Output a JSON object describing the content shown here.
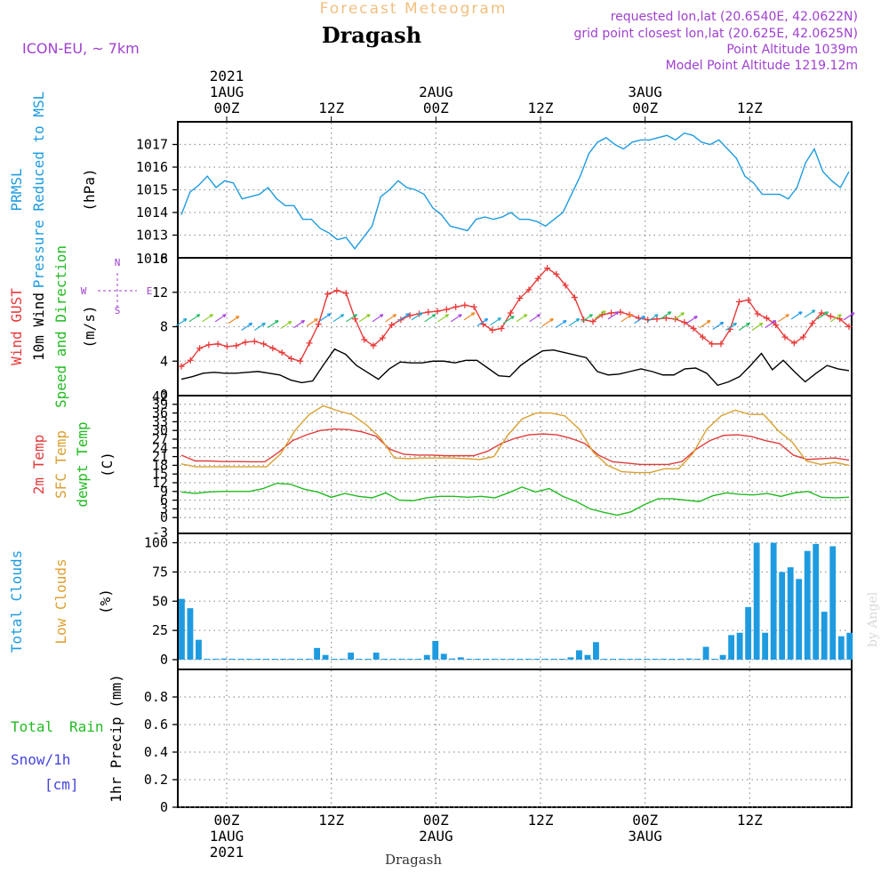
{
  "header": {
    "forecast_title": "Forecast Meteogram",
    "location": "Dragash",
    "model": "ICON-EU, ~ 7km",
    "requested": "requested lon,lat (20.6540E, 42.0622N)",
    "grid": "grid point closest lon,lat (20.625E, 42.0625N)",
    "altitude": "Point Altitude 1039m",
    "model_altitude": "Model Point Altitude 1219.12m",
    "credit": "by Angel",
    "footer_location": "Dragash"
  },
  "colors": {
    "prmsl": "#1e9be0",
    "gust": "#e83a3a",
    "wind": "#000000",
    "t2m": "#e03c3c",
    "sfc": "#d9a030",
    "dew": "#22bb22",
    "clouds": "#1e9be0",
    "low_clouds": "#e0a030",
    "rain": "#22bb22",
    "snow": "#4444dd",
    "header_purple": "#a040d0",
    "title_orange": "#f0c080",
    "grid": "#999999"
  },
  "chart_data": {
    "time_axis": {
      "hours_from": -3,
      "hours_to": 60,
      "top_ticks": [
        {
          "h": 0,
          "lines": [
            "2021",
            "1AUG",
            "00Z"
          ]
        },
        {
          "h": 12,
          "lines": [
            "12Z"
          ]
        },
        {
          "h": 24,
          "lines": [
            "2AUG",
            "00Z"
          ]
        },
        {
          "h": 36,
          "lines": [
            "12Z"
          ]
        },
        {
          "h": 48,
          "lines": [
            "3AUG",
            "00Z"
          ]
        },
        {
          "h": 60,
          "lines": [
            "12Z"
          ]
        }
      ],
      "bottom_ticks": [
        {
          "h": 0,
          "lines": [
            "00Z",
            "1AUG",
            "2021"
          ]
        },
        {
          "h": 12,
          "lines": [
            "12Z"
          ]
        },
        {
          "h": 24,
          "lines": [
            "00Z",
            "2AUG"
          ]
        },
        {
          "h": 36,
          "lines": [
            "12Z"
          ]
        },
        {
          "h": 48,
          "lines": [
            "00Z",
            "3AUG"
          ]
        },
        {
          "h": 60,
          "lines": [
            "12Z"
          ]
        }
      ]
    },
    "panels": [
      {
        "id": "pressure",
        "type": "line",
        "labels": [
          {
            "text": "PRMSL",
            "color": "#1e9be0"
          },
          {
            "text": "Pressure Reduced to MSL",
            "color": "#1e9be0"
          },
          {
            "text": "(hPa)",
            "color": "#000000"
          }
        ],
        "ylim": [
          1012,
          1018
        ],
        "ticks": [
          "1013",
          "1014",
          "1015",
          "1016",
          "1017"
        ],
        "tick_values": [
          1013,
          1014,
          1015,
          1016,
          1017
        ],
        "top_label": "1018",
        "series": [
          {
            "name": "PRMSL",
            "color": "#1e9be0",
            "markers": false,
            "values": [
              1013.9,
              1014.9,
              1015.2,
              1015.6,
              1015.1,
              1015.4,
              1015.3,
              1014.6,
              1014.7,
              1014.8,
              1015.1,
              1014.6,
              1014.3,
              1014.3,
              1013.7,
              1013.7,
              1013.3,
              1013.1,
              1012.8,
              1012.9,
              1012.4,
              1012.9,
              1013.4,
              1014.7,
              1015.0,
              1015.4,
              1015.1,
              1015.0,
              1014.8,
              1014.2,
              1013.9,
              1013.4,
              1013.3,
              1013.2,
              1013.7,
              1013.8,
              1013.7,
              1013.8,
              1014.0,
              1013.7,
              1013.7,
              1013.6,
              1013.4,
              1013.7,
              1014.0,
              1014.8,
              1015.6,
              1016.6,
              1017.1,
              1017.3,
              1017.0,
              1016.8,
              1017.1,
              1017.2,
              1017.2,
              1017.3,
              1017.4,
              1017.2,
              1017.5,
              1017.4,
              1017.1,
              1017.0,
              1017.2,
              1016.8,
              1016.4,
              1015.6,
              1015.3,
              1014.8,
              1014.8,
              1014.8,
              1014.6,
              1015.1,
              1016.2,
              1016.8,
              1015.8,
              1015.4,
              1015.1,
              1015.8
            ]
          }
        ]
      },
      {
        "id": "wind",
        "type": "line",
        "labels": [
          {
            "text": "Wind GUST",
            "color": "#e83a3a"
          },
          {
            "text": "10m Wind",
            "color": "#000000"
          },
          {
            "text": "Speed and Direction",
            "color": "#22bb22"
          },
          {
            "text": "(m/s)",
            "color": "#000000"
          }
        ],
        "compass": {
          "w": "W",
          "e": "E",
          "n": "N",
          "s": "S"
        },
        "ylim": [
          0,
          16
        ],
        "ticks": [
          "4",
          "8",
          "12"
        ],
        "tick_values": [
          4,
          8,
          12
        ],
        "top_label": "16",
        "bottom_label": "0",
        "series": [
          {
            "name": "Wind GUST",
            "color": "#e83a3a",
            "markers": true,
            "values": [
              3.4,
              4.1,
              5.5,
              5.9,
              6.0,
              5.7,
              5.8,
              6.2,
              6.3,
              6.0,
              5.5,
              5.0,
              4.3,
              4.0,
              6.1,
              8.3,
              11.8,
              12.2,
              11.9,
              8.9,
              6.5,
              5.8,
              6.7,
              8.2,
              8.8,
              9.3,
              9.5,
              9.7,
              9.8,
              10.0,
              10.3,
              10.5,
              10.3,
              8.3,
              7.6,
              7.8,
              9.6,
              11.3,
              12.3,
              13.6,
              14.8,
              14.1,
              12.8,
              11.4,
              8.8,
              8.6,
              9.4,
              9.6,
              9.7,
              9.4,
              9.0,
              8.8,
              8.9,
              9.0,
              8.9,
              8.5,
              7.8,
              6.8,
              6.0,
              6.0,
              7.7,
              10.9,
              11.1,
              9.5,
              9.0,
              8.2,
              6.8,
              6.1,
              6.8,
              8.4,
              9.6,
              9.2,
              8.9,
              8.0
            ]
          },
          {
            "name": "10m Wind",
            "color": "#000000",
            "markers": false,
            "values": [
              1.9,
              2.2,
              2.6,
              2.7,
              2.6,
              2.6,
              2.7,
              2.8,
              2.6,
              2.4,
              1.8,
              1.5,
              1.7,
              3.6,
              5.4,
              4.8,
              3.5,
              2.7,
              1.9,
              3.1,
              3.9,
              3.8,
              3.8,
              4.0,
              4.0,
              3.8,
              4.1,
              4.1,
              3.2,
              2.3,
              2.2,
              3.5,
              4.4,
              5.2,
              5.3,
              5.0,
              4.7,
              4.4,
              2.8,
              2.4,
              2.5,
              2.8,
              3.1,
              2.8,
              2.4,
              2.4,
              3.1,
              3.2,
              2.6,
              1.2,
              1.6,
              2.2,
              3.5,
              4.9,
              3.0,
              4.1,
              2.8,
              1.6,
              2.6,
              3.5,
              3.1,
              2.9
            ]
          }
        ],
        "barbs_y": [
          8.5,
          9.0,
          9.0,
          9.0,
          8.8,
          8.0,
          8.0,
          8.3,
          8.2,
          8.3,
          8.5,
          9.1,
          9.0,
          9.0,
          9.0,
          9.0,
          9.0,
          9.1,
          9.2,
          9.0,
          9.0,
          9.0,
          9.2,
          8.5,
          8.6,
          8.8,
          9.0,
          9.0,
          8.5,
          8.3,
          8.5,
          9.0,
          9.4,
          9.3,
          9.0,
          8.8,
          9.0,
          9.3,
          9.2,
          8.8,
          8.3,
          8.1,
          8.0,
          8.0,
          8.0,
          8.3,
          9.0,
          9.3,
          9.5,
          9.3,
          9.0,
          9.2
        ]
      },
      {
        "id": "temperature",
        "type": "line",
        "labels": [
          {
            "text": "2m Temp",
            "color": "#e03c3c"
          },
          {
            "text": "SFC Temp",
            "color": "#d9a030"
          },
          {
            "text": "dewpt Temp",
            "color": "#22bb22"
          },
          {
            "text": "(C)",
            "color": "#000000"
          }
        ],
        "ylim": [
          -3,
          42
        ],
        "ticks": [
          "0",
          "3",
          "6",
          "9",
          "12",
          "15",
          "18",
          "21",
          "24",
          "27",
          "30",
          "33",
          "36",
          "39"
        ],
        "tick_values": [
          0,
          3,
          6,
          9,
          12,
          15,
          18,
          21,
          24,
          27,
          30,
          33,
          36,
          39
        ],
        "top_label": "42",
        "bottom_label": "-3",
        "series": [
          {
            "name": "2m Temp",
            "color": "#e03c3c",
            "markers": false,
            "values": [
              21.5,
              19.5,
              19.5,
              19.3,
              19.3,
              19.2,
              19.2,
              22.5,
              26.5,
              28.5,
              30.0,
              30.5,
              30.3,
              29.5,
              28.0,
              23.5,
              21.8,
              21.5,
              21.5,
              21.3,
              21.3,
              21.3,
              22.8,
              25.5,
              27.3,
              28.5,
              28.8,
              28.5,
              27.3,
              25.5,
              21.5,
              19.2,
              18.8,
              18.3,
              18.3,
              18.3,
              19.3,
              23.5,
              26.5,
              28.3,
              28.5,
              27.9,
              26.5,
              25.5,
              21.5,
              20.0,
              20.3,
              20.5,
              19.8
            ]
          },
          {
            "name": "SFC Temp",
            "color": "#d9a030",
            "markers": false,
            "values": [
              18.5,
              17.5,
              17.5,
              17.5,
              17.5,
              17.5,
              17.5,
              22.0,
              30.0,
              35.5,
              38.5,
              36.8,
              35.5,
              32.0,
              27.5,
              20.5,
              20.3,
              20.5,
              20.5,
              20.5,
              20.3,
              20.0,
              21.0,
              28.5,
              34.0,
              36.0,
              36.0,
              35.0,
              30.5,
              22.5,
              18.0,
              15.8,
              15.5,
              15.5,
              16.8,
              16.8,
              22.0,
              30.5,
              35.0,
              37.0,
              35.5,
              35.5,
              30.0,
              26.0,
              19.5,
              18.3,
              19.0,
              18.0
            ]
          },
          {
            "name": "dewpt Temp",
            "color": "#22bb22",
            "markers": false,
            "values": [
              8.8,
              8.3,
              8.8,
              9.0,
              9.0,
              9.0,
              10.0,
              11.8,
              11.5,
              9.8,
              8.8,
              7.0,
              8.3,
              7.3,
              6.8,
              8.5,
              6.0,
              5.8,
              6.8,
              7.3,
              7.3,
              7.0,
              7.3,
              6.8,
              8.5,
              10.5,
              8.8,
              10.0,
              7.3,
              5.5,
              3.0,
              1.8,
              0.8,
              2.0,
              4.5,
              6.5,
              6.5,
              6.0,
              5.5,
              7.5,
              8.5,
              8.0,
              7.8,
              8.3,
              7.3,
              8.5,
              9.0,
              7.0,
              6.8,
              7.0
            ]
          }
        ]
      },
      {
        "id": "clouds",
        "type": "bar",
        "labels": [
          {
            "text": "Total Clouds",
            "color": "#1e9be0"
          },
          {
            "text": "Low Clouds",
            "color": "#e0a030"
          },
          {
            "text": "(%)",
            "color": "#000000"
          }
        ],
        "ylim": [
          0,
          108
        ],
        "ticks": [
          "0",
          "25",
          "50",
          "75",
          "100"
        ],
        "tick_values": [
          0,
          25,
          50,
          75,
          100
        ],
        "bar_start_hour": -2.8,
        "bar_step_hours": 1,
        "values": [
          52,
          44,
          17,
          0,
          0,
          1,
          0,
          0,
          0,
          0,
          0,
          0,
          0,
          0,
          0,
          0,
          10,
          4,
          0,
          0,
          6,
          0,
          0,
          6,
          0,
          0,
          0,
          0,
          0,
          4,
          16,
          5,
          1,
          2,
          0,
          0,
          0,
          0,
          0,
          0,
          0,
          0,
          0,
          0,
          0,
          0,
          2,
          8,
          4,
          15,
          0,
          0,
          0,
          0,
          0,
          0,
          0,
          0,
          0,
          0,
          1,
          0,
          11,
          0,
          4,
          21,
          23,
          45,
          100,
          23,
          100,
          75,
          79,
          69,
          93,
          99,
          41,
          97,
          20,
          23
        ]
      },
      {
        "id": "precip",
        "type": "bar",
        "labels": [
          {
            "text": "Total",
            "color": "#22bb22"
          },
          {
            "text": "Rain",
            "color": "#22bb22"
          },
          {
            "text": "Snow/1h",
            "color": "#4444dd"
          },
          {
            "text": "[cm]",
            "color": "#4444dd"
          },
          {
            "text": "1hr Precip (mm)",
            "color": "#000000"
          }
        ],
        "ylim": [
          0,
          1.0
        ],
        "ticks": [
          "0",
          "0.2",
          "0.4",
          "0.6",
          "0.8"
        ],
        "tick_values": [
          0,
          0.2,
          0.4,
          0.6,
          0.8
        ],
        "values": []
      }
    ]
  }
}
